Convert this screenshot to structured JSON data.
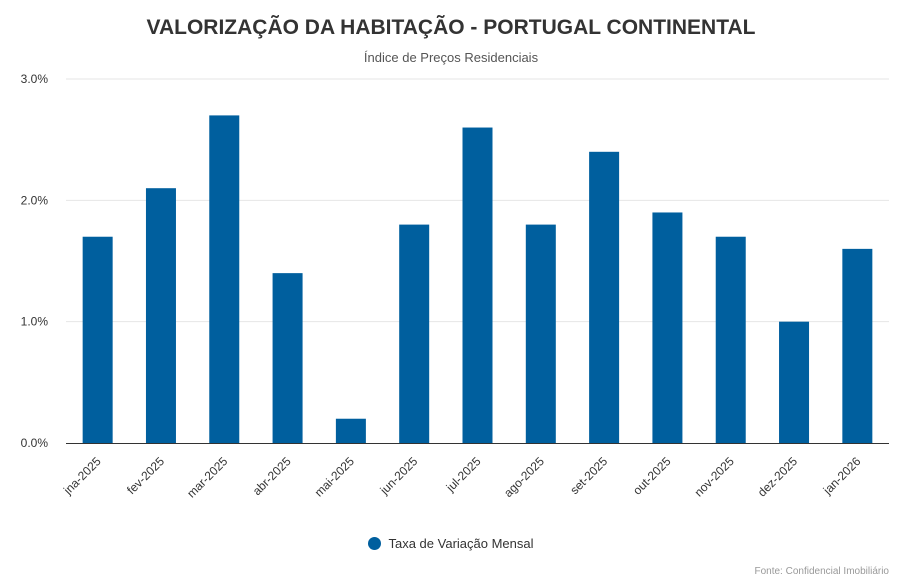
{
  "colors": {
    "bar": "#005f9e",
    "grid": "#e6e6e6",
    "axis_line": "#333333",
    "text": "#333333"
  },
  "chart_data": {
    "type": "bar",
    "title": "VALORIZAÇÃO DA HABITAÇÃO - PORTUGAL CONTINENTAL",
    "subtitle": "Índice de Preços Residenciais",
    "categories": [
      "jna-2025",
      "fev-2025",
      "mar-2025",
      "abr-2025",
      "mai-2025",
      "jun-2025",
      "jul-2025",
      "ago-2025",
      "set-2025",
      "out-2025",
      "nov-2025",
      "dez-2025",
      "jan-2026"
    ],
    "series": [
      {
        "name": "Taxa de Variação Mensal",
        "values": [
          1.7,
          2.1,
          2.7,
          1.4,
          0.2,
          1.8,
          2.6,
          1.8,
          2.4,
          1.9,
          1.7,
          1.0,
          1.6
        ]
      }
    ],
    "xlabel": "",
    "ylabel": "",
    "ylim": [
      0,
      3
    ],
    "yticks": [
      0,
      1,
      2,
      3
    ],
    "ytick_labels": [
      "0.0%",
      "1.0%",
      "2.0%",
      "3.0%"
    ],
    "legend_position": "bottom-center",
    "grid": true
  },
  "credits": "Fonte: Confidencial Imobiliário"
}
